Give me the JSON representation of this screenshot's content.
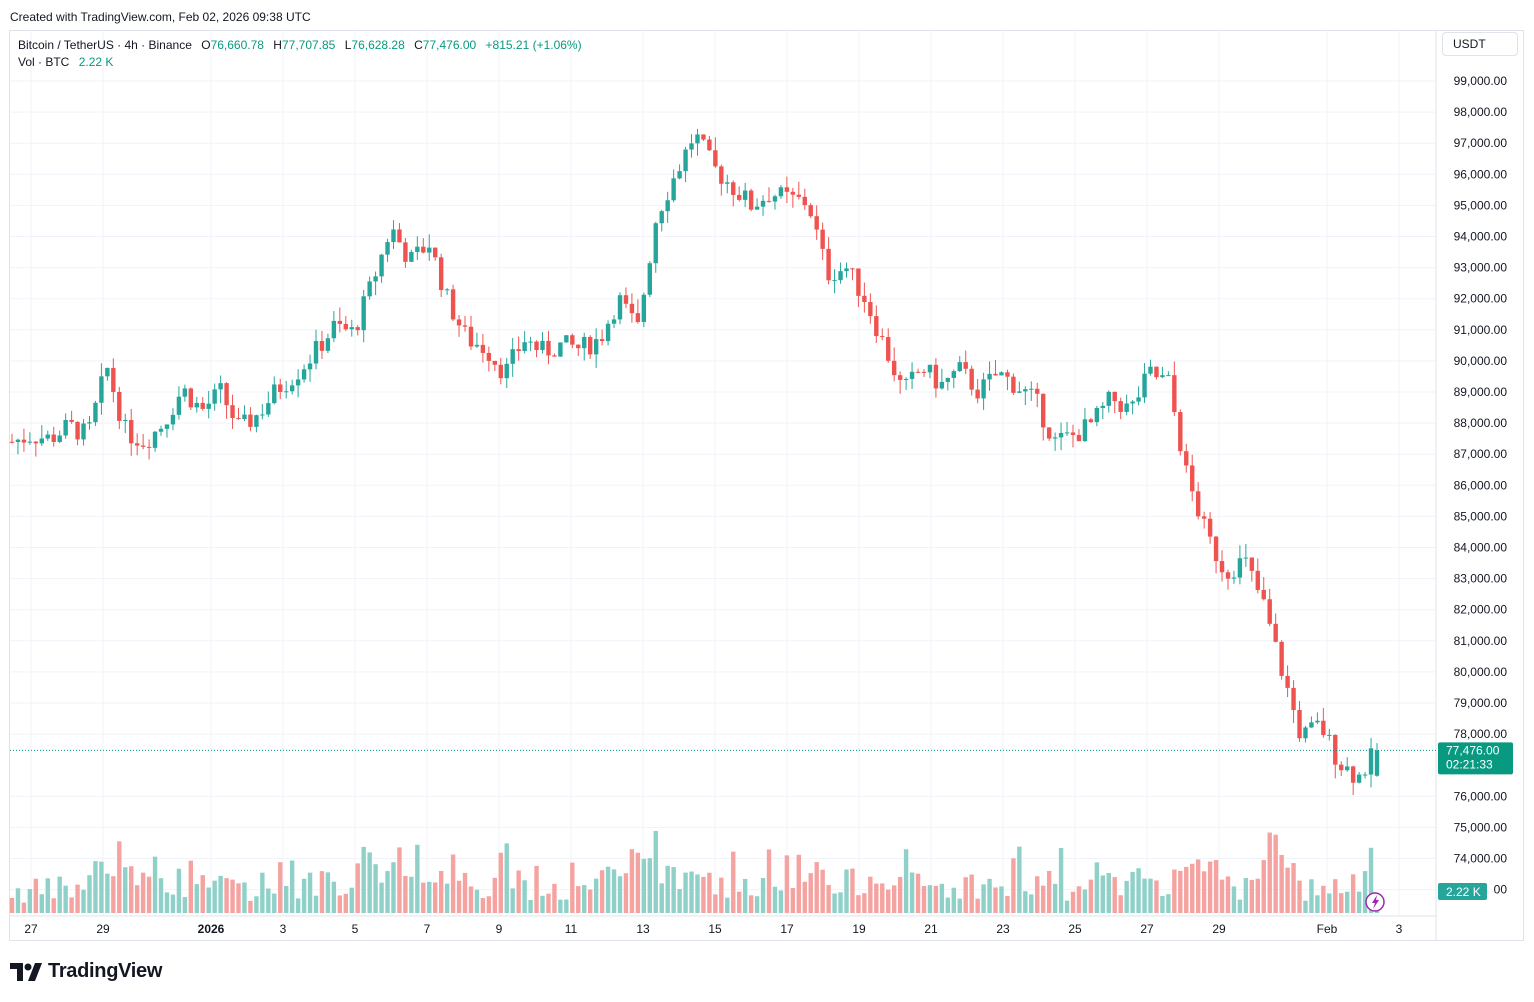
{
  "header": {
    "created": "Created with TradingView.com, Feb 02, 2026 09:38 UTC"
  },
  "legend": {
    "symbol": "Bitcoin / TetherUS · 4h · Binance",
    "open_label": "O",
    "open": "76,660.78",
    "high_label": "H",
    "high": "77,707.85",
    "low_label": "L",
    "low": "76,628.28",
    "close_label": "C",
    "close": "77,476.00",
    "change": "+815.21 (+1.06%)",
    "vol_label": "Vol · BTC",
    "vol_value": "2.22 K"
  },
  "currency": "USDT",
  "last_price": {
    "price": "77,476.00",
    "countdown": "02:21:33"
  },
  "volume_badge": "2.22 K",
  "brand": {
    "name": "TradingView"
  },
  "colors": {
    "up": "#26a69a",
    "down": "#ef5350",
    "up_vol": "#8fd1c8",
    "down_vol": "#f5a3a1",
    "text_green": "#089981",
    "grid": "#f0f3fa"
  },
  "chart_data": {
    "type": "candlestick",
    "title": "Bitcoin / TetherUS · 4h · Binance",
    "ylabel": "USDT",
    "ylim": [
      72500,
      100300
    ],
    "y_ticks": [
      "78,000.00",
      "79,000.00",
      "80,000.00",
      "81,000.00",
      "82,000.00",
      "83,000.00",
      "84,000.00",
      "85,000.00",
      "86,000.00",
      "87,000.00",
      "88,000.00",
      "89,000.00",
      "90,000.00",
      "91,000.00",
      "92,000.00",
      "93,000.00",
      "94,000.00",
      "95,000.00",
      "96,000.00",
      "97,000.00",
      "98,000.00",
      "99,000.00"
    ],
    "y_ticks_lower": [
      "76,000.00",
      "75,000.00",
      "74,000.00",
      "00"
    ],
    "x_ticks": [
      "27",
      "29",
      "2026",
      "3",
      "5",
      "7",
      "9",
      "11",
      "13",
      "15",
      "17",
      "19",
      "21",
      "23",
      "25",
      "27",
      "29",
      "Feb",
      "3"
    ],
    "candles_close_path": [
      87400,
      87600,
      87500,
      87900,
      87600,
      89800,
      87700,
      87400,
      88000,
      89100,
      88400,
      89000,
      87800,
      88300,
      89100,
      89600,
      90300,
      91100,
      90900,
      92500,
      94300,
      93200,
      93800,
      91900,
      90700,
      90400,
      89600,
      90700,
      90300,
      90500,
      90400,
      90700,
      92000,
      91000,
      94700,
      96000,
      97300,
      96200,
      95600,
      95000,
      95400,
      95200,
      95100,
      92800,
      93000,
      92000,
      90500,
      89000,
      89800,
      89200,
      89700,
      89000,
      89600,
      89200,
      88700,
      87400,
      87600,
      88000,
      88800,
      88400,
      89600,
      89300,
      86200,
      84400,
      83200,
      83600,
      82200,
      80000,
      77900,
      78300,
      77100,
      76600,
      77476
    ]
  }
}
